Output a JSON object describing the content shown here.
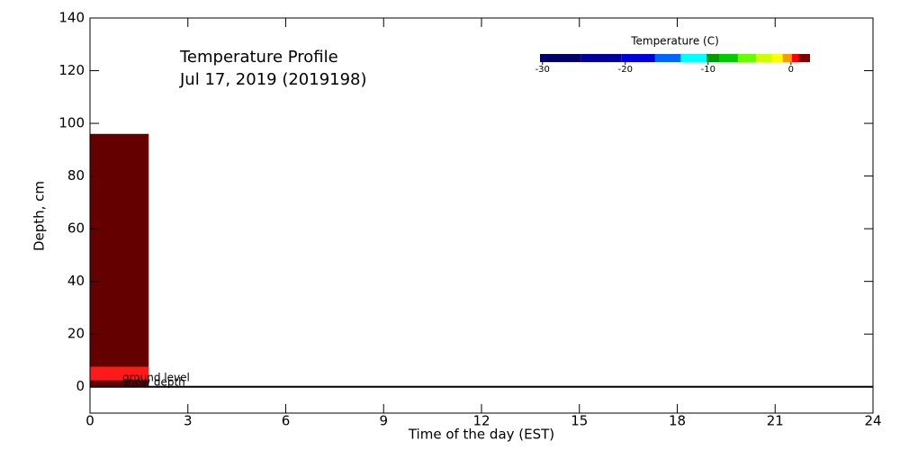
{
  "chart_data": {
    "type": "heatmap",
    "title": "Temperature Profile",
    "subtitle": "Jul 17, 2019 (2019198)",
    "x_label": "Time of the day (EST)",
    "y_label": "Depth, cm",
    "xlim": [
      0,
      24
    ],
    "ylim": [
      -10,
      140
    ],
    "xticks": [
      0,
      3,
      6,
      9,
      12,
      15,
      18,
      21,
      24
    ],
    "yticks": [
      0,
      20,
      40,
      60,
      80,
      100,
      120,
      140
    ],
    "cells": [
      {
        "x": [
          0,
          1.8
        ],
        "depth": [
          0,
          2.5
        ],
        "color": "#640000"
      },
      {
        "x": [
          0,
          1.8
        ],
        "depth": [
          2.5,
          7.5
        ],
        "color": "#ff1a1a"
      },
      {
        "x": [
          0,
          1.8
        ],
        "depth": [
          7.5,
          96
        ],
        "color": "#640000"
      }
    ],
    "ground_level": 0,
    "annotations": [
      "ground level",
      "snow depth"
    ],
    "colorbar": {
      "title": "Temperature (C)",
      "bounds": [
        -30.3,
        -25.4,
        -20.5,
        -16.4,
        -13.3,
        -10.2,
        -8.6,
        -6.4,
        -4.2,
        -2.3,
        -1.0,
        0.1,
        0.9,
        2.3
      ],
      "colors": [
        "#000066",
        "#000099",
        "#0000dd",
        "#0066ff",
        "#00ffff",
        "#009900",
        "#00cc00",
        "#66ff00",
        "#ccff00",
        "#ffff00",
        "#ff9900",
        "#ff0000",
        "#800000"
      ],
      "ticks": [
        -30,
        -20,
        -10,
        0
      ]
    }
  }
}
